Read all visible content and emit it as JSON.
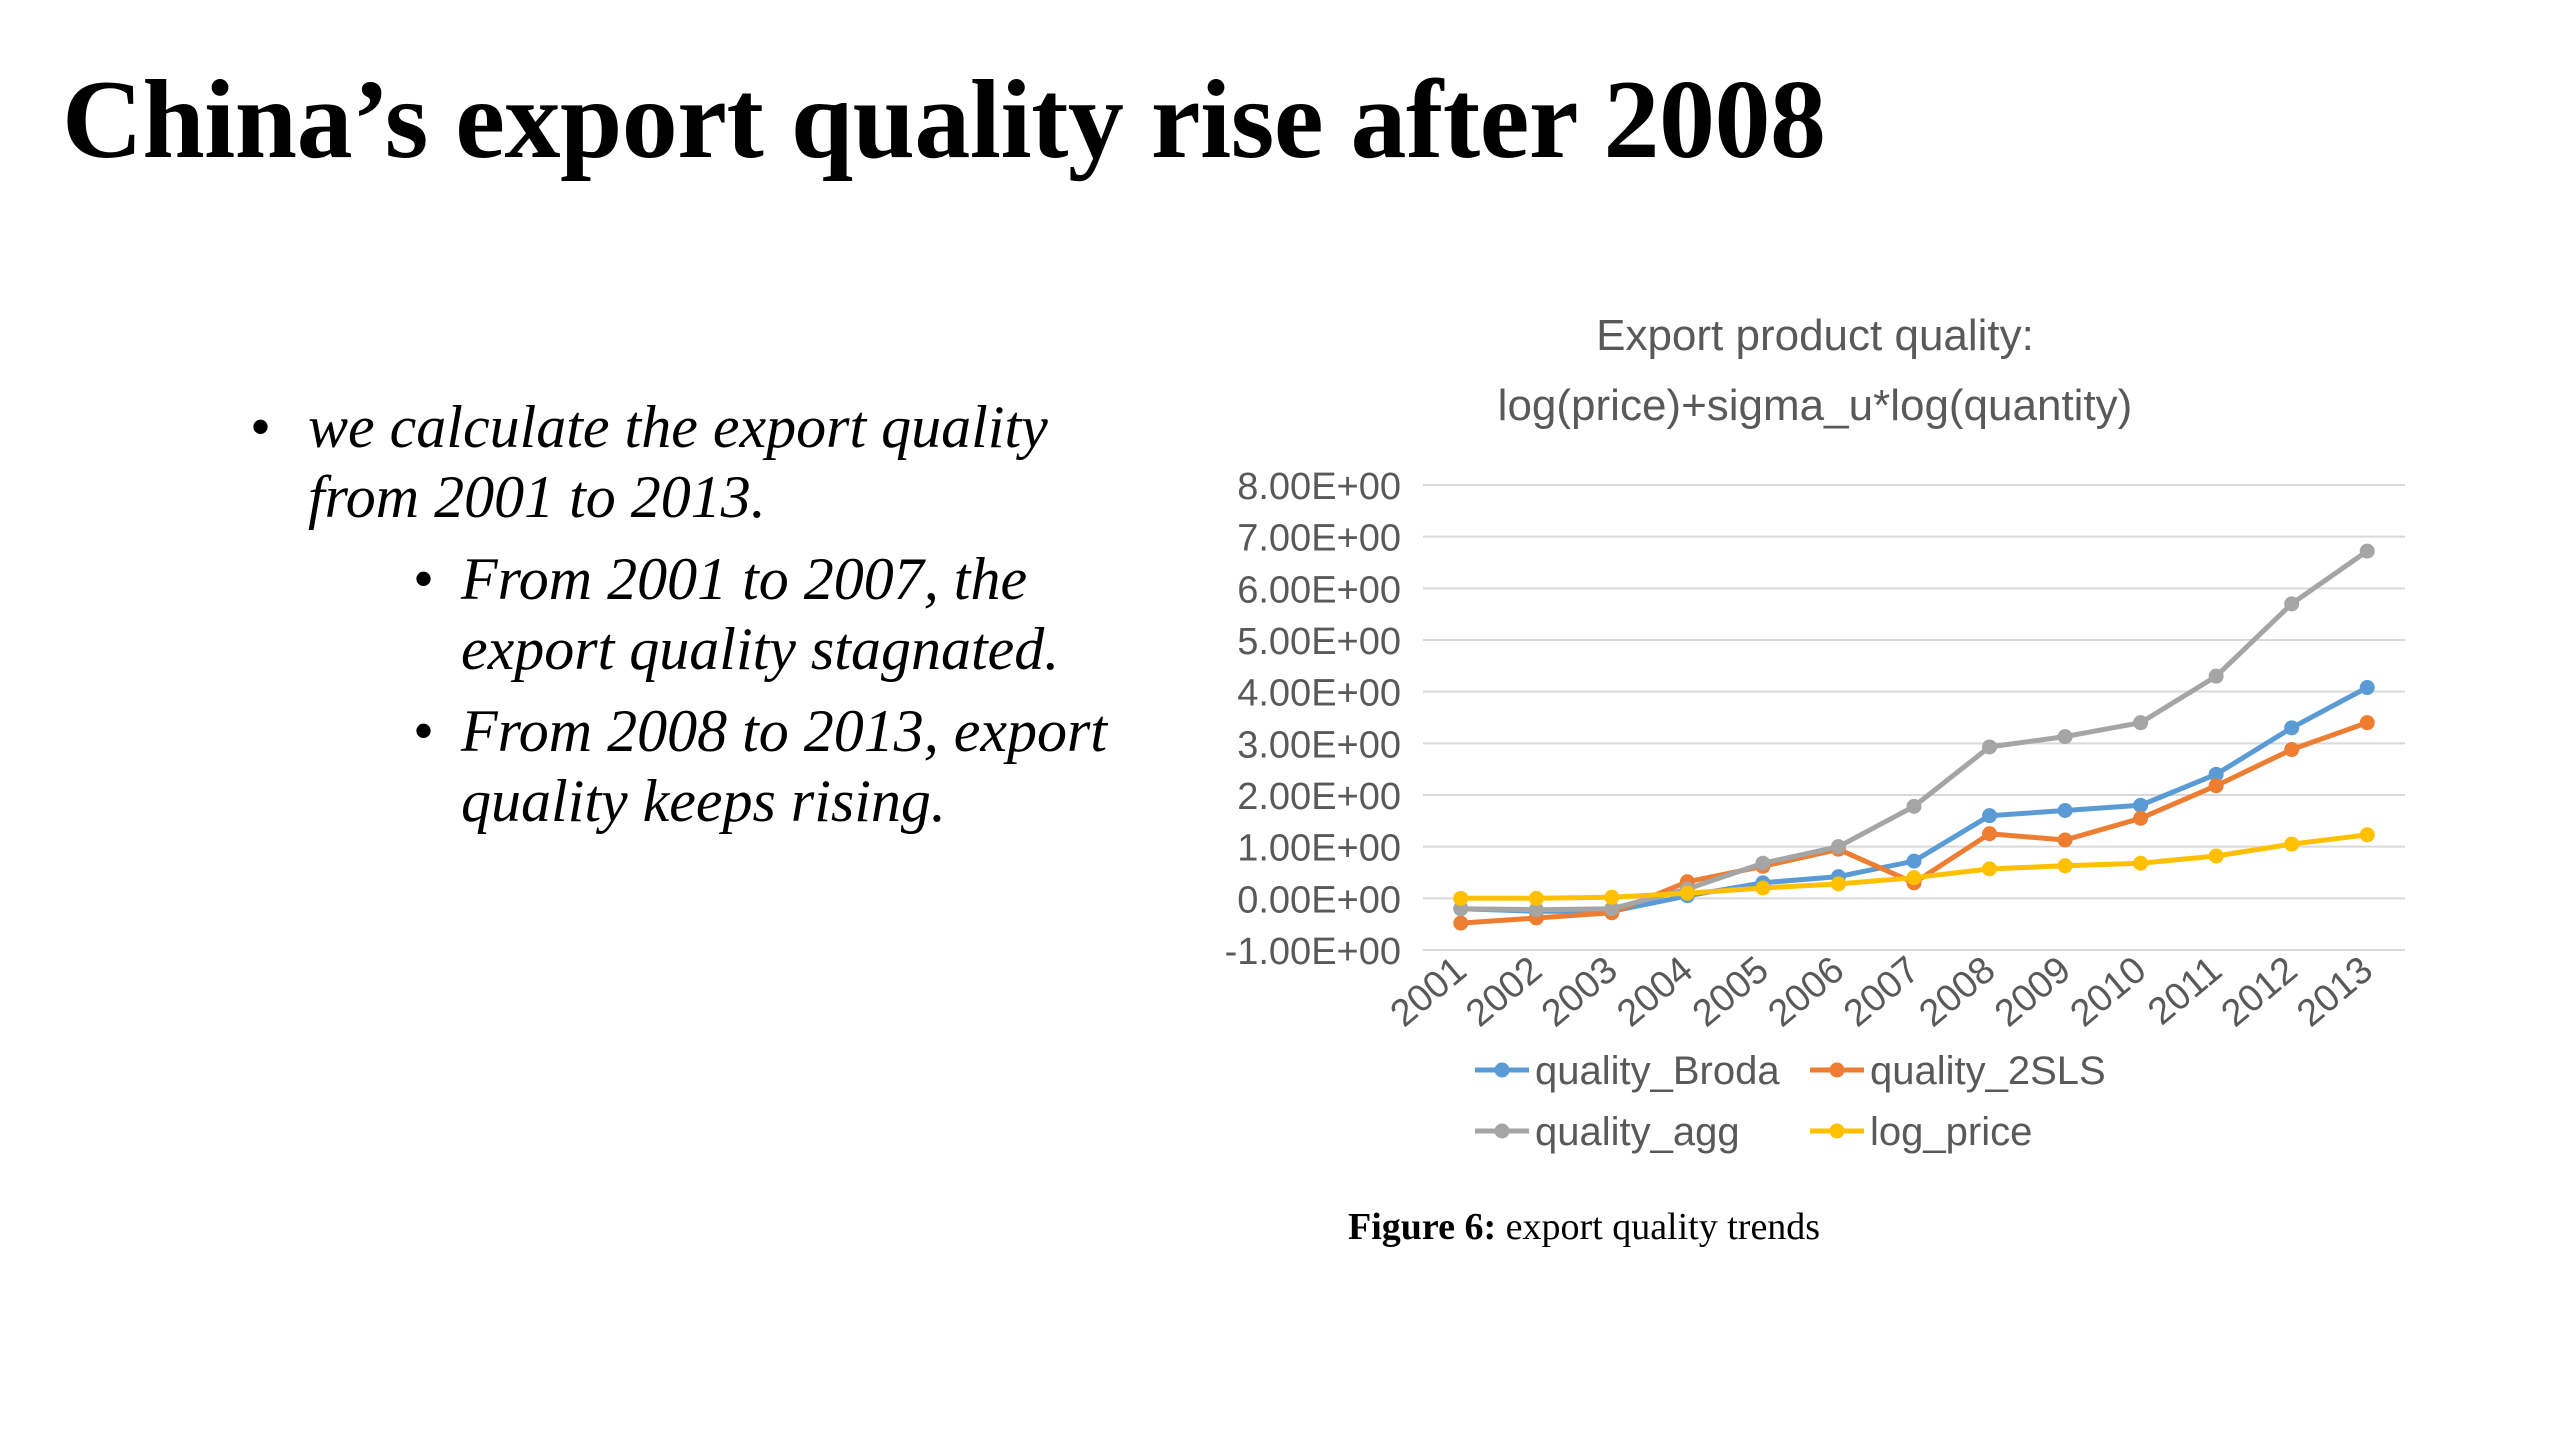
{
  "slide": {
    "title": "China’s export quality rise after 2008",
    "bullets": {
      "main": "we calculate the export quality from 2001 to 2013.",
      "sub": [
        "From 2001 to 2007, the export quality stagnated.",
        "From 2008 to 2013, export quality keeps rising."
      ]
    },
    "caption_label": "Figure 6:",
    "caption_text": " export quality trends"
  },
  "chart_data": {
    "type": "line",
    "title": "Export product quality:",
    "subtitle": "log(price)+sigma_u*log(quantity)",
    "xlabel": "",
    "ylabel": "",
    "ylim": [
      -1,
      8
    ],
    "ytick_step": 1,
    "ytick_labels": [
      "-1.00E+00",
      "0.00E+00",
      "1.00E+00",
      "2.00E+00",
      "3.00E+00",
      "4.00E+00",
      "5.00E+00",
      "6.00E+00",
      "7.00E+00",
      "8.00E+00"
    ],
    "grid": true,
    "legend": "bottom",
    "categories": [
      "2001",
      "2002",
      "2003",
      "2004",
      "2005",
      "2006",
      "2007",
      "2008",
      "2009",
      "2010",
      "2011",
      "2012",
      "2013"
    ],
    "series": [
      {
        "name": "quality_Broda",
        "color": "#5b9bd5",
        "values": [
          -0.2,
          -0.25,
          -0.25,
          0.05,
          0.3,
          0.42,
          0.72,
          1.6,
          1.7,
          1.8,
          2.4,
          3.3,
          4.08
        ]
      },
      {
        "name": "quality_2SLS",
        "color": "#ed7d31",
        "values": [
          -0.48,
          -0.38,
          -0.28,
          0.32,
          0.62,
          0.95,
          0.3,
          1.25,
          1.13,
          1.55,
          2.18,
          2.88,
          3.4
        ]
      },
      {
        "name": "quality_agg",
        "color": "#a5a5a5",
        "values": [
          -0.2,
          -0.22,
          -0.2,
          0.18,
          0.68,
          1.0,
          1.78,
          2.93,
          3.13,
          3.4,
          4.3,
          5.7,
          6.72
        ]
      },
      {
        "name": "log_price",
        "color": "#ffc000",
        "values": [
          0.0,
          0.0,
          0.02,
          0.1,
          0.2,
          0.28,
          0.4,
          0.57,
          0.63,
          0.68,
          0.82,
          1.05,
          1.23
        ]
      }
    ]
  }
}
